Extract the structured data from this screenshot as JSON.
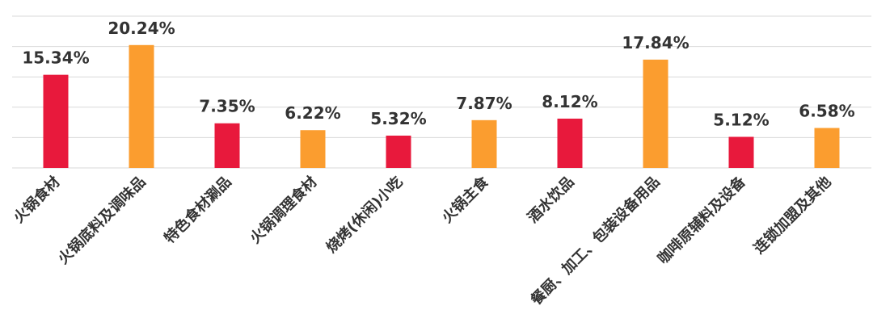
{
  "chart_data": {
    "type": "bar",
    "title": "",
    "xlabel": "",
    "ylabel": "",
    "ylim": [
      0,
      25
    ],
    "grid": true,
    "legend": "none",
    "categories": [
      "火锅食材",
      "火锅底料及调味品",
      "特色食材涮品",
      "火锅调理食材",
      "烧烤(休闲)小吃",
      "火锅主食",
      "酒水饮品",
      "餐厨、加工、包装设备用品",
      "咖啡原辅料及设备",
      "连锁加盟及其他"
    ],
    "values": [
      15.34,
      20.24,
      7.35,
      6.22,
      5.32,
      7.87,
      8.12,
      17.84,
      5.12,
      6.58
    ],
    "data_labels": [
      "15.34%",
      "20.24%",
      "7.35%",
      "6.22%",
      "5.32%",
      "7.87%",
      "8.12%",
      "17.84%",
      "5.12%",
      "6.58%"
    ],
    "bar_colors": [
      "#e8193c",
      "#fb9d2f",
      "#e8193c",
      "#fb9d2f",
      "#e8193c",
      "#fb9d2f",
      "#e8193c",
      "#fb9d2f",
      "#e8193c",
      "#fb9d2f"
    ],
    "gridline_color": "#d9d9d9",
    "label_color": "#333333"
  }
}
